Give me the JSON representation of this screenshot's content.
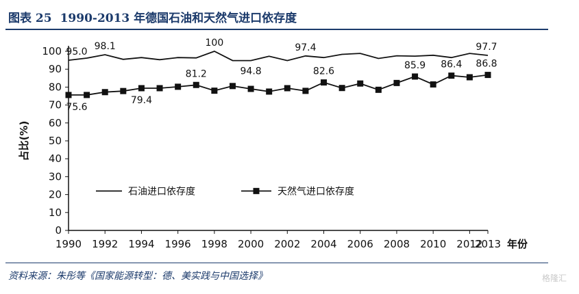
{
  "header": {
    "figure_label": "图表 25",
    "title": "1990-2013 年德国石油和天然气进口依存度"
  },
  "source": "资料来源：朱彤等《国家能源转型：德、美实践与中国选择》",
  "watermark": "格隆汇",
  "chart_data": {
    "type": "line",
    "title": "1990-2013 年德国石油和天然气进口依存度",
    "xlabel": "年份",
    "ylabel": "占比(%)",
    "xlim": [
      1990,
      2013
    ],
    "ylim": [
      0,
      100
    ],
    "xticks": [
      "1990",
      "1992",
      "1994",
      "1996",
      "1998",
      "2000",
      "2002",
      "2004",
      "2006",
      "2008",
      "2010",
      "2012",
      "2013"
    ],
    "yticks": [
      "0",
      "10",
      "20",
      "30",
      "40",
      "50",
      "60",
      "70",
      "80",
      "90",
      "100"
    ],
    "grid": false,
    "legend_position": "bottom-left",
    "series": [
      {
        "name": "石油进口依存度",
        "marker": "none",
        "color": "#111111",
        "x": [
          1990,
          1991,
          1992,
          1993,
          1994,
          1995,
          1996,
          1997,
          1998,
          1999,
          2000,
          2001,
          2002,
          2003,
          2004,
          2005,
          2006,
          2007,
          2008,
          2009,
          2010,
          2011,
          2012,
          2013
        ],
        "values": [
          95.0,
          96.2,
          98.1,
          95.5,
          96.5,
          95.3,
          96.5,
          96.3,
          100,
          94.8,
          94.8,
          97.2,
          94.8,
          97.4,
          96.5,
          98.3,
          98.8,
          96.0,
          97.5,
          97.3,
          97.8,
          96.5,
          98.8,
          97.7
        ]
      },
      {
        "name": "天然气进口依存度",
        "marker": "square",
        "color": "#111111",
        "x": [
          1990,
          1991,
          1992,
          1993,
          1994,
          1995,
          1996,
          1997,
          1998,
          1999,
          2000,
          2001,
          2002,
          2003,
          2004,
          2005,
          2006,
          2007,
          2008,
          2009,
          2010,
          2011,
          2012,
          2013
        ],
        "values": [
          75.6,
          75.6,
          77.2,
          77.8,
          79.4,
          79.4,
          80.2,
          81.2,
          78.0,
          80.6,
          79.0,
          77.5,
          79.4,
          77.9,
          82.6,
          79.5,
          82.0,
          78.5,
          82.3,
          85.9,
          81.5,
          86.4,
          85.5,
          86.8
        ]
      }
    ],
    "data_labels": [
      {
        "series": 0,
        "x": 1990,
        "text": "95.0"
      },
      {
        "series": 0,
        "x": 1992,
        "text": "98.1"
      },
      {
        "series": 0,
        "x": 1998,
        "text": "100"
      },
      {
        "series": 0,
        "x": 2000,
        "text": "94.8"
      },
      {
        "series": 0,
        "x": 2003,
        "text": "97.4"
      },
      {
        "series": 0,
        "x": 2013,
        "text": "97.7"
      },
      {
        "series": 1,
        "x": 1990,
        "text": "75.6"
      },
      {
        "series": 1,
        "x": 1994,
        "text": "79.4"
      },
      {
        "series": 1,
        "x": 1997,
        "text": "81.2"
      },
      {
        "series": 1,
        "x": 2004,
        "text": "82.6"
      },
      {
        "series": 1,
        "x": 2009,
        "text": "85.9"
      },
      {
        "series": 1,
        "x": 2011,
        "text": "86.4"
      },
      {
        "series": 1,
        "x": 2013,
        "text": "86.8"
      }
    ]
  }
}
